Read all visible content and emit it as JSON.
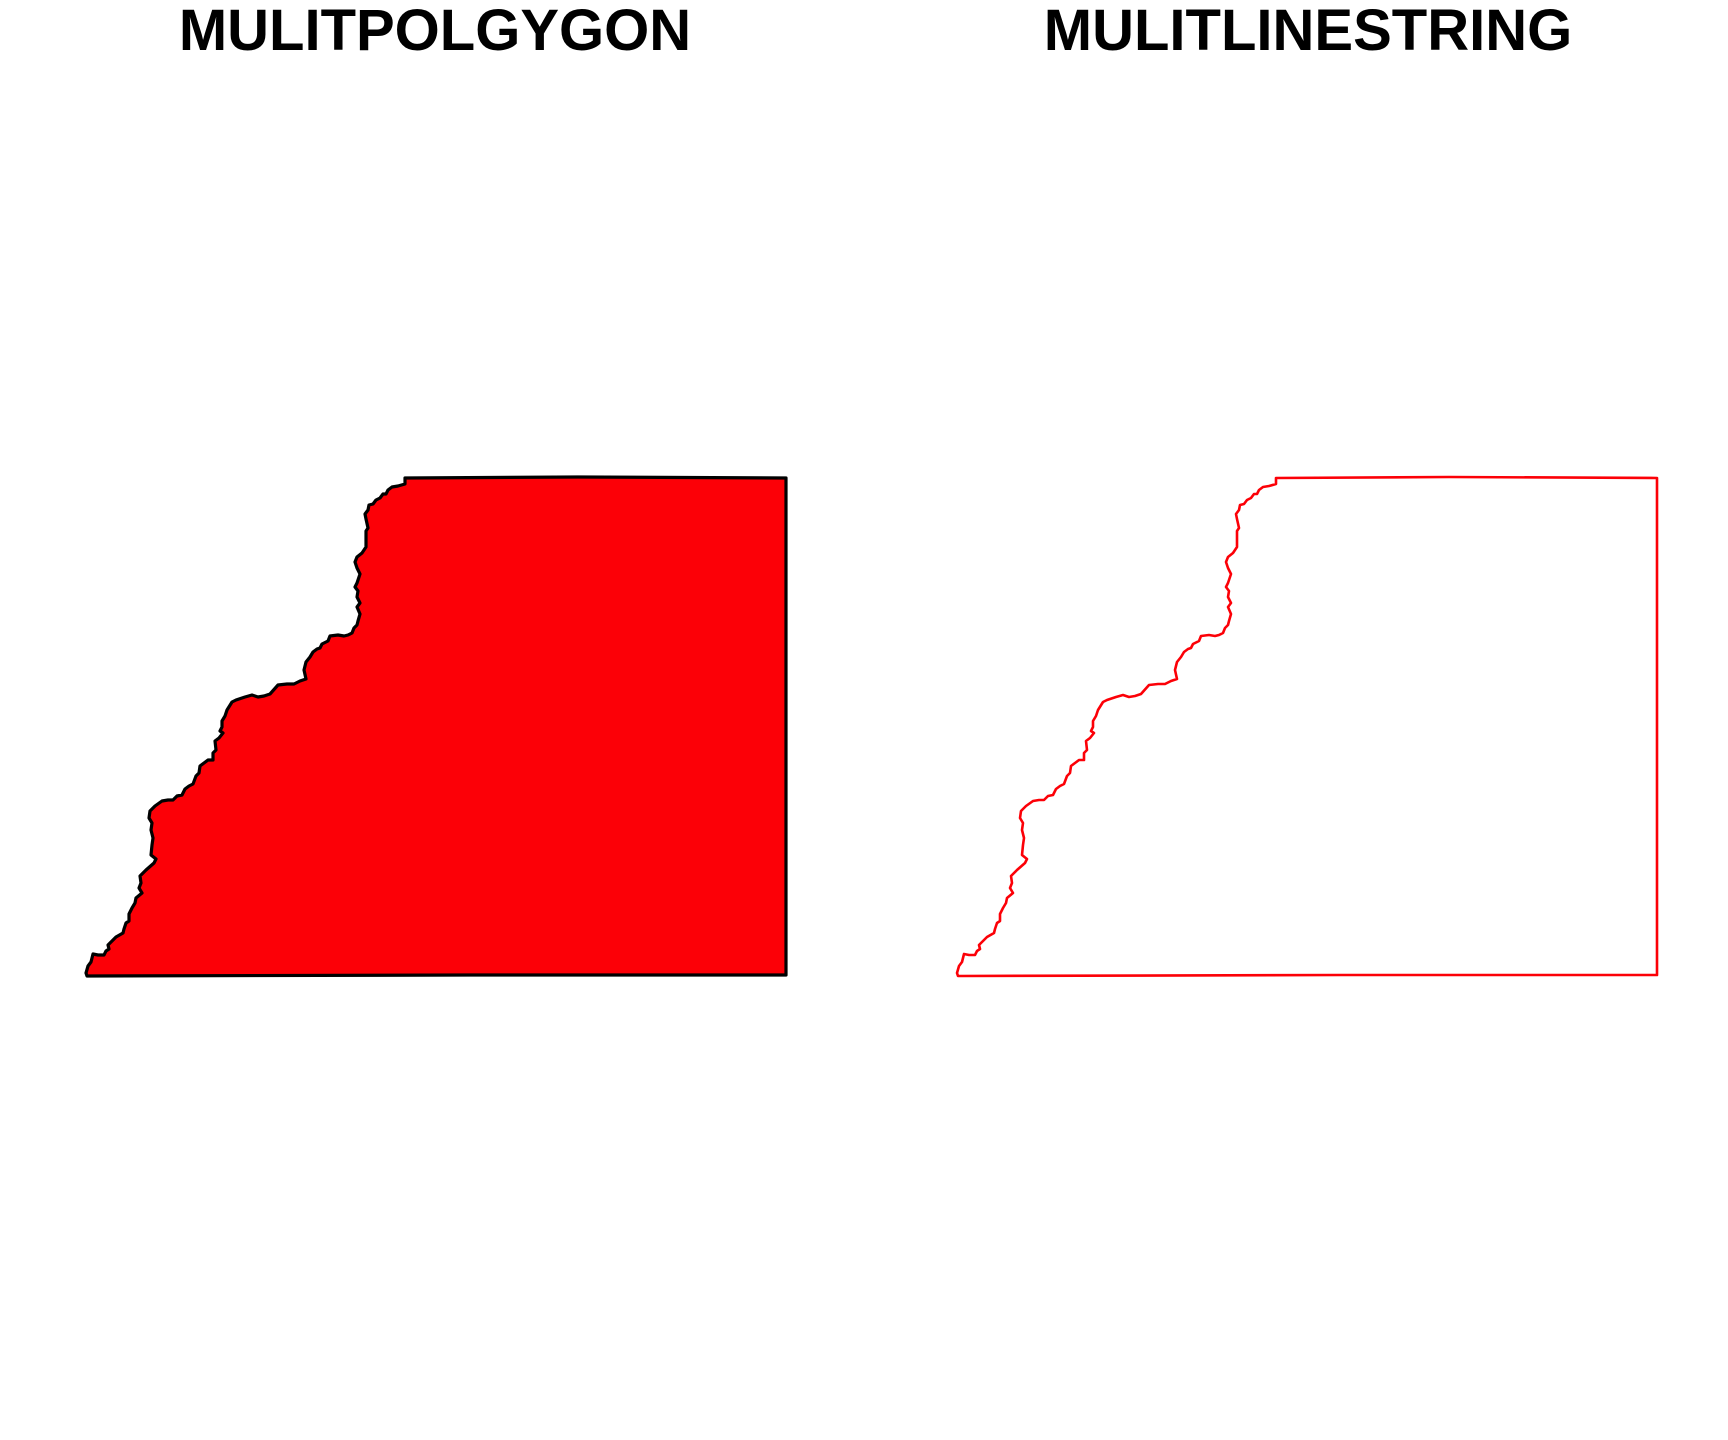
{
  "panels": [
    {
      "title": "MULITPOLGYGON",
      "geometry_type": "MULTIPOLYGON",
      "fill_color": "#fc0007",
      "stroke_color": "#000000"
    },
    {
      "title": "MULITLINESTRING",
      "geometry_type": "MULTILINESTRING",
      "fill_color": "none",
      "stroke_color": "#fc0007"
    }
  ]
}
